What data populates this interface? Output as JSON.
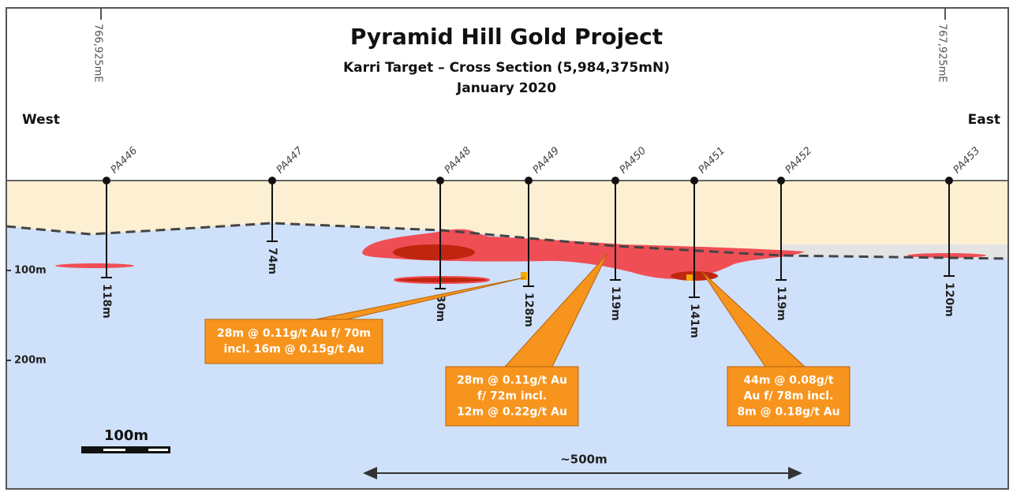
{
  "header": {
    "title": "Pyramid Hill Gold Project",
    "subtitle": "Karri Target – Cross Section (5,984,375mN)",
    "date": "January 2020"
  },
  "eastings": [
    "766,925mE",
    "767,925mE"
  ],
  "directions": {
    "west": "West",
    "east": "East"
  },
  "depth_labels": [
    "100m",
    "200m"
  ],
  "holes": [
    {
      "name": "PA446",
      "depth": "118m"
    },
    {
      "name": "PA447",
      "depth": "74m"
    },
    {
      "name": "PA448",
      "depth": "30m"
    },
    {
      "name": "PA449",
      "depth": "128m"
    },
    {
      "name": "PA450",
      "depth": "119m"
    },
    {
      "name": "PA451",
      "depth": "141m"
    },
    {
      "name": "PA452",
      "depth": "119m"
    },
    {
      "name": "PA453",
      "depth": "120m"
    }
  ],
  "callouts": [
    {
      "lines": [
        "28m @ 0.11g/t Au f/ 70m",
        "incl. 16m @ 0.15g/t Au"
      ]
    },
    {
      "lines": [
        "28m @ 0.11g/t Au",
        "f/ 72m incl.",
        "12m @ 0.22g/t Au"
      ]
    },
    {
      "lines": [
        "44m @ 0.08g/t",
        "Au f/ 78m incl.",
        "8m @ 0.18g/t Au"
      ]
    }
  ],
  "scale_bar": "100m",
  "distance": "~500m"
}
